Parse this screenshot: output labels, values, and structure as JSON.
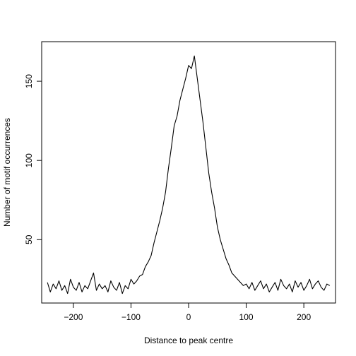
{
  "chart_data": {
    "type": "line",
    "title": "",
    "xlabel": "Distance to peak centre",
    "ylabel": "Number of motif occurrences",
    "xlim": [
      -255,
      255
    ],
    "ylim": [
      10,
      175
    ],
    "xticks": [
      -200,
      -100,
      0,
      100,
      200
    ],
    "xtick_labels": [
      "−200",
      "−100",
      "0",
      "100",
      "200"
    ],
    "yticks": [
      50,
      100,
      150
    ],
    "ytick_labels": [
      "50",
      "100",
      "150"
    ],
    "grid": false,
    "legend": "none",
    "series": [
      {
        "color": "#000000",
        "x": [
          -245,
          -240,
          -235,
          -230,
          -225,
          -220,
          -215,
          -210,
          -205,
          -200,
          -195,
          -190,
          -185,
          -180,
          -175,
          -170,
          -165,
          -160,
          -155,
          -150,
          -145,
          -140,
          -135,
          -130,
          -125,
          -120,
          -115,
          -110,
          -105,
          -100,
          -95,
          -90,
          -85,
          -80,
          -75,
          -70,
          -65,
          -60,
          -55,
          -50,
          -45,
          -40,
          -35,
          -30,
          -25,
          -20,
          -15,
          -10,
          -5,
          0,
          5,
          10,
          15,
          20,
          25,
          30,
          35,
          40,
          45,
          50,
          55,
          60,
          65,
          70,
          75,
          80,
          85,
          90,
          95,
          100,
          105,
          110,
          115,
          120,
          125,
          130,
          135,
          140,
          145,
          150,
          155,
          160,
          165,
          170,
          175,
          180,
          185,
          190,
          195,
          200,
          205,
          210,
          215,
          220,
          225,
          230,
          235,
          240,
          245
        ],
        "y": [
          23,
          17,
          22,
          19,
          24,
          18,
          21,
          16,
          25,
          20,
          18,
          23,
          17,
          21,
          19,
          24,
          29,
          18,
          22,
          19,
          21,
          17,
          24,
          20,
          18,
          23,
          16,
          21,
          19,
          25,
          22,
          24,
          27,
          28,
          33,
          36,
          40,
          48,
          55,
          62,
          70,
          80,
          95,
          108,
          122,
          128,
          138,
          145,
          152,
          160,
          158,
          166,
          152,
          138,
          124,
          108,
          92,
          80,
          70,
          58,
          50,
          44,
          38,
          34,
          29,
          27,
          25,
          23,
          21,
          22,
          19,
          23,
          18,
          21,
          24,
          19,
          22,
          17,
          20,
          23,
          18,
          25,
          21,
          19,
          22,
          17,
          24,
          20,
          23,
          18,
          21,
          25,
          19,
          22,
          24,
          20,
          18,
          22,
          21
        ]
      }
    ]
  }
}
